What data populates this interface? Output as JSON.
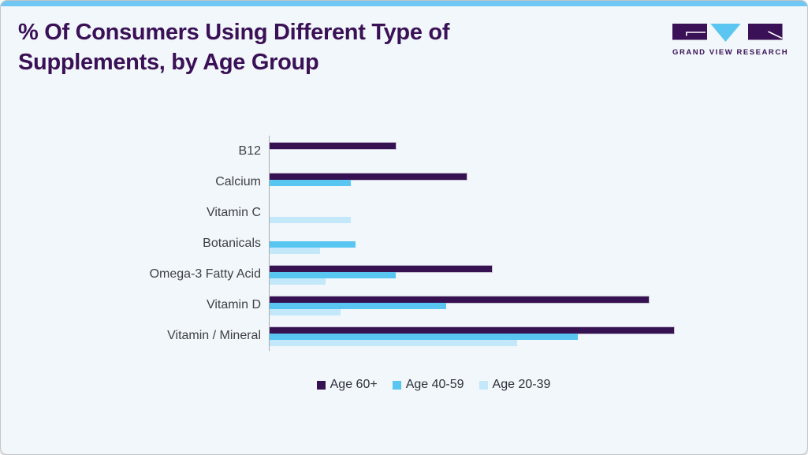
{
  "header": {
    "title_line1": "% Of Consumers Using Different Type of",
    "title_line2": "Supplements, by Age Group",
    "logo_text": "GRAND VIEW RESEARCH"
  },
  "chart_data": {
    "type": "bar",
    "orientation": "horizontal",
    "title": "% Of Consumers Using Different Type of Supplements, by Age Group",
    "categories": [
      "B12",
      "Calcium",
      "Vitamin C",
      "Botanicals",
      "Omega-3 Fatty Acid",
      "Vitamin D",
      "Vitamin / Mineral"
    ],
    "series": [
      {
        "name": "Age 60+",
        "color": "#371253",
        "values": [
          25,
          39,
          0,
          0,
          44,
          75,
          80
        ]
      },
      {
        "name": "Age 40-59",
        "color": "#59c5f1",
        "values": [
          0,
          16,
          0,
          17,
          25,
          35,
          61
        ]
      },
      {
        "name": "Age 20-39",
        "color": "#c3e8fa",
        "values": [
          0,
          0,
          16,
          10,
          11,
          14,
          49
        ]
      }
    ],
    "xlabel": "",
    "ylabel": "",
    "xlim": [
      0,
      88
    ],
    "grid": false,
    "axis_labels_shown": false,
    "legend_position": "bottom"
  },
  "colors": {
    "card_background": "#f1f7fb",
    "top_accent": "#70c7f1",
    "title_text": "#3a1056",
    "category_label_text": "#3f4046",
    "axis_line": "#a9acb4",
    "legend_text": "#2f2f38"
  }
}
